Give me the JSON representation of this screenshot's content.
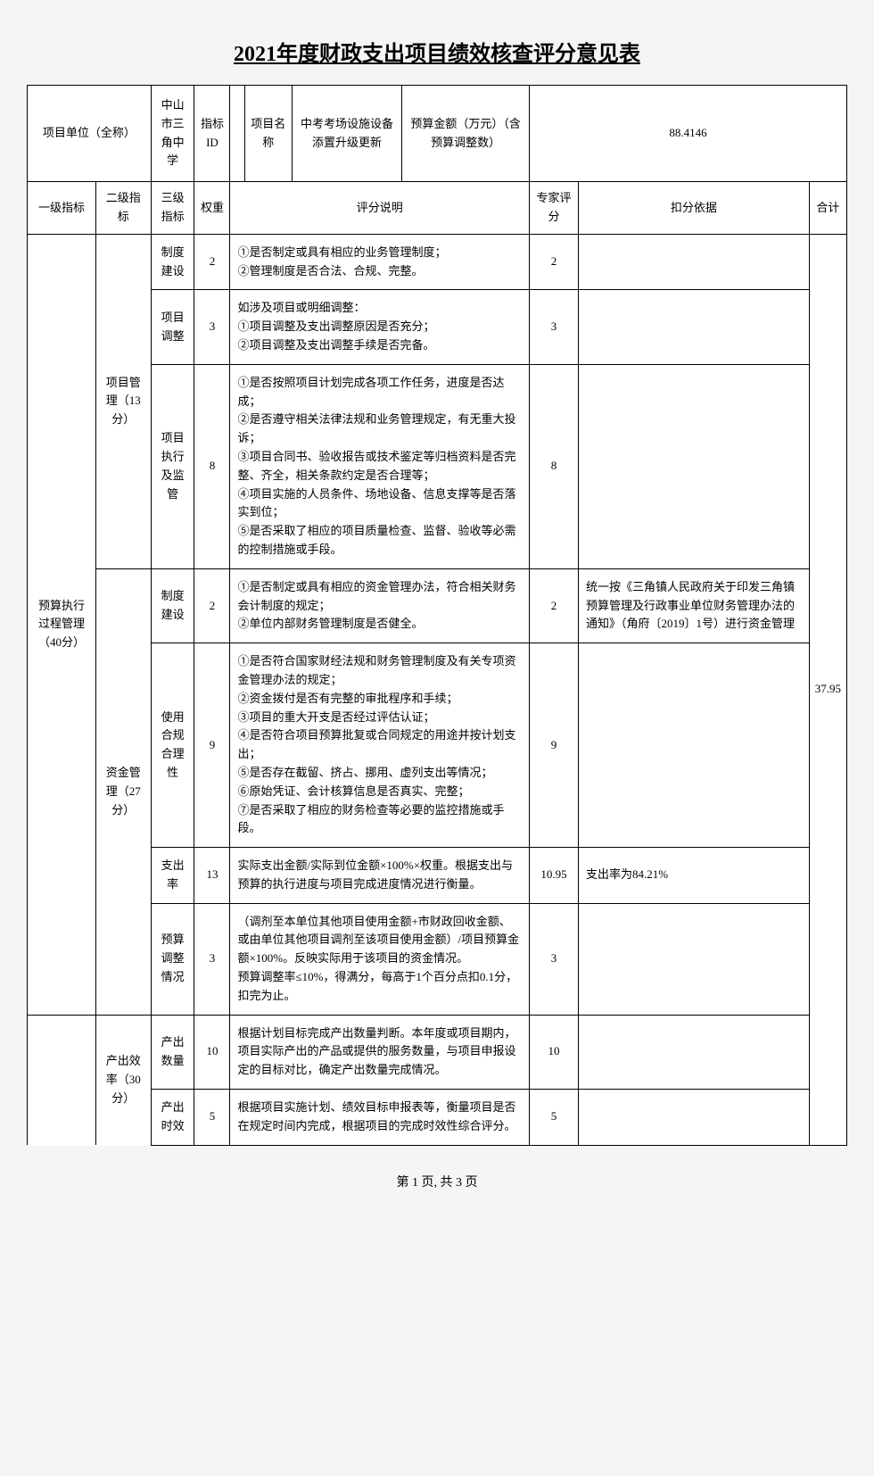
{
  "title": "2021年度财政支出项目绩效核查评分意见表",
  "header": {
    "unit_label": "项目单位（全称）",
    "unit_value": "中山市三角中学",
    "indicator_id_label": "指标ID",
    "indicator_id_value": "",
    "project_label": "项目名称",
    "project_value": "中考考场设施设备添置升级更新",
    "budget_label": "预算金额（万元）（含预算调整数）",
    "budget_value": "88.4146"
  },
  "columns": {
    "level1": "一级指标",
    "level2": "二级指标",
    "level3": "三级指标",
    "weight": "权重",
    "description": "评分说明",
    "score": "专家评分",
    "basis": "扣分依据",
    "total": "合计"
  },
  "level1": {
    "budget_exec": "预算执行过程管理（40分）",
    "output_eff": "产出效率（30分）"
  },
  "level2": {
    "project_mgmt": "项目管理（13分）",
    "fund_mgmt": "资金管理（27分）"
  },
  "rows": [
    {
      "level3": "制度建设",
      "weight": "2",
      "desc": "①是否制定或具有相应的业务管理制度；\n②管理制度是否合法、合规、完整。",
      "score": "2",
      "basis": ""
    },
    {
      "level3": "项目调整",
      "weight": "3",
      "desc": "如涉及项目或明细调整：\n①项目调整及支出调整原因是否充分；\n②项目调整及支出调整手续是否完备。",
      "score": "3",
      "basis": ""
    },
    {
      "level3": "项目执行及监管",
      "weight": "8",
      "desc": "①是否按照项目计划完成各项工作任务，进度是否达成；\n②是否遵守相关法律法规和业务管理规定，有无重大投诉；\n③项目合同书、验收报告或技术鉴定等归档资料是否完整、齐全，相关条款约定是否合理等；\n④项目实施的人员条件、场地设备、信息支撑等是否落实到位；\n⑤是否采取了相应的项目质量检查、监督、验收等必需的控制措施或手段。",
      "score": "8",
      "basis": ""
    },
    {
      "level3": "制度建设",
      "weight": "2",
      "desc": "①是否制定或具有相应的资金管理办法，符合相关财务会计制度的规定；\n②单位内部财务管理制度是否健全。",
      "score": "2",
      "basis": "统一按《三角镇人民政府关于印发三角镇预算管理及行政事业单位财务管理办法的通知》（角府〔2019〕1号）进行资金管理"
    },
    {
      "level3": "使用合规合理性",
      "weight": "9",
      "desc": "①是否符合国家财经法规和财务管理制度及有关专项资金管理办法的规定；\n②资金拨付是否有完整的审批程序和手续；\n③项目的重大开支是否经过评估认证；\n④是否符合项目预算批复或合同规定的用途并按计划支出；\n⑤是否存在截留、挤占、挪用、虚列支出等情况；\n⑥原始凭证、会计核算信息是否真实、完整；\n⑦是否采取了相应的财务检查等必要的监控措施或手段。",
      "score": "9",
      "basis": ""
    },
    {
      "level3": "支出率",
      "weight": "13",
      "desc": "实际支出金额/实际到位金额×100%×权重。根据支出与预算的执行进度与项目完成进度情况进行衡量。",
      "score": "10.95",
      "basis": "支出率为84.21%"
    },
    {
      "level3": "预算调整情况",
      "weight": "3",
      "desc": "（调剂至本单位其他项目使用金额+市财政回收金额、或由单位其他项目调剂至该项目使用金额）/项目预算金额×100%。反映实际用于该项目的资金情况。\n预算调整率≤10%，得满分，每高于1个百分点扣0.1分，扣完为止。",
      "score": "3",
      "basis": ""
    },
    {
      "level3": "产出数量",
      "weight": "10",
      "desc": "根据计划目标完成产出数量判断。本年度或项目期内，项目实际产出的产品或提供的服务数量，与项目申报设定的目标对比，确定产出数量完成情况。",
      "score": "10",
      "basis": ""
    },
    {
      "level3": "产出时效",
      "weight": "5",
      "desc": "根据项目实施计划、绩效目标申报表等，衡量项目是否在规定时间内完成，根据项目的完成时效性综合评分。",
      "score": "5",
      "basis": ""
    }
  ],
  "total_score": "37.95",
  "footer": "第 1 页, 共 3 页"
}
